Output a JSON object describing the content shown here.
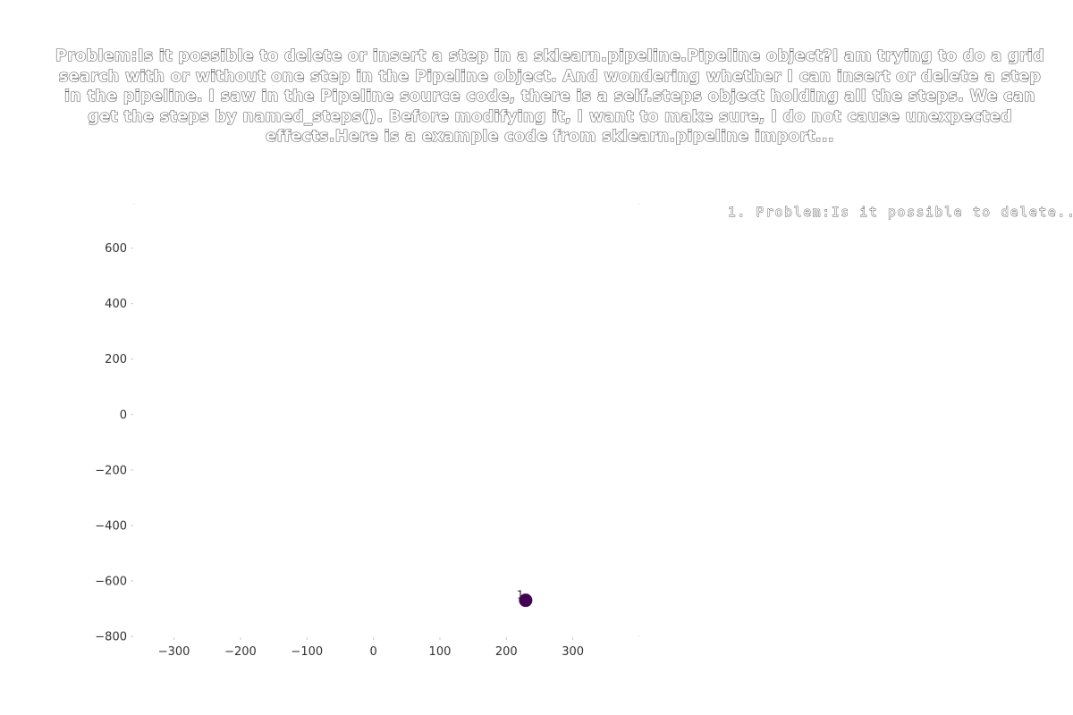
{
  "chart_data": {
    "type": "scatter",
    "title": "Problem:Is it possible to delete or insert a step in a sklearn.pipeline.Pipeline object?I am trying to do a grid search with or without one step in the Pipeline object. And wondering whether I can insert or delete a step in the pipeline. I saw in the Pipeline source code, there is a self.steps object holding all the steps. We can get the steps by named_steps(). Before modifying it, I want to make sure, I do not cause unexpected effects.Here is a example code from sklearn.pipeline import...",
    "xlabel": "",
    "ylabel": "",
    "xlim": [
      -360,
      400
    ],
    "ylim": [
      -800,
      760
    ],
    "x_ticks": [
      -300,
      -200,
      -100,
      0,
      100,
      200,
      300
    ],
    "x_tick_labels": [
      "−300",
      "−200",
      "−100",
      "0",
      "100",
      "200",
      "300"
    ],
    "y_ticks": [
      600,
      400,
      200,
      0,
      -200,
      -400,
      -600,
      -800
    ],
    "y_tick_labels": [
      "600",
      "400",
      "200",
      "0",
      "−200",
      "−400",
      "−600",
      "−800"
    ],
    "grid": false,
    "legend_position": "top-right",
    "legend_entries": [
      "1. Problem:Is it possible to delete..."
    ],
    "points": [
      {
        "label": "1",
        "x": 229,
        "y": -670,
        "color": "#440154"
      }
    ]
  }
}
